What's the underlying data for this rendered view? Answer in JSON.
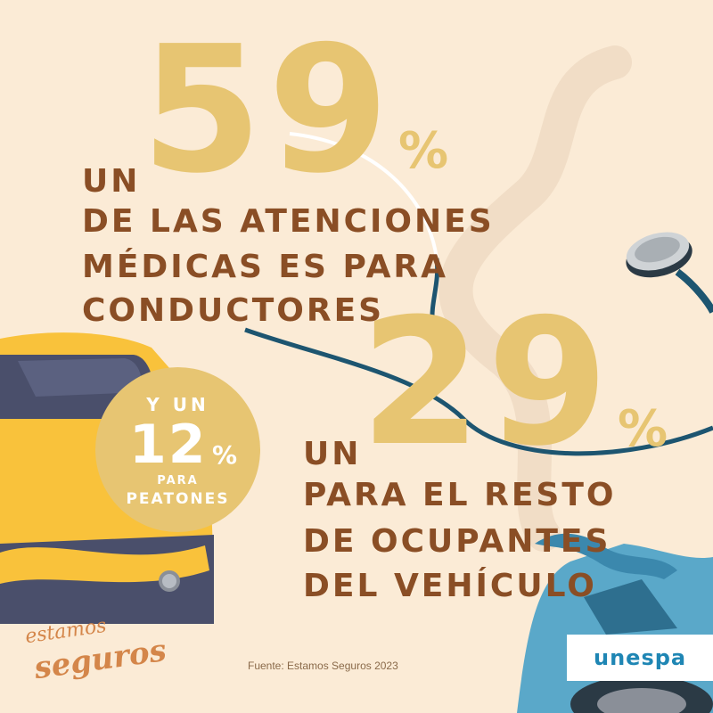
{
  "stat_primary": {
    "prefix": "UN",
    "number": "59",
    "percent": "%",
    "lines": [
      "DE LAS ATENCIONES",
      "MÉDICAS ES PARA",
      "CONDUCTORES"
    ]
  },
  "stat_secondary": {
    "prefix": "UN",
    "number": "29",
    "percent": "%",
    "lines": [
      "PARA EL RESTO",
      "DE OCUPANTES",
      "DEL VEHÍCULO"
    ]
  },
  "badge": {
    "intro": "Y UN",
    "number": "12",
    "percent": "%",
    "line1": "PARA",
    "line2": "PEATONES"
  },
  "source": "Fuente: Estamos Seguros 2023",
  "logo_left": {
    "line1": "estamos",
    "line2": "seguros"
  },
  "brand_logo": "unespa",
  "colors": {
    "background": "#fbebd6",
    "gold": "#e7c572",
    "brown": "#8a4e25",
    "teal": "#1d5570",
    "car_yellow": "#f9c23b",
    "car_blue": "#5aa8c9"
  }
}
